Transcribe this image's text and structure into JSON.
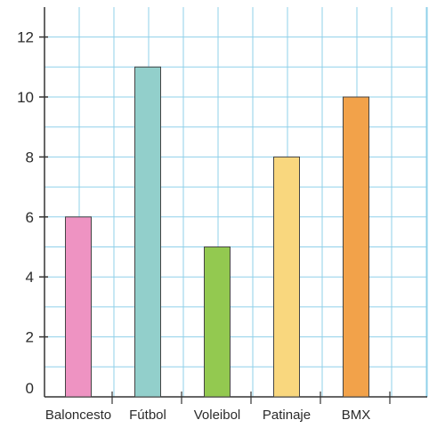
{
  "chart_data": {
    "type": "bar",
    "categories": [
      "Baloncesto",
      "Fútbol",
      "Voleibol",
      "Patinaje",
      "BMX"
    ],
    "values": [
      6,
      11,
      5,
      8,
      10
    ],
    "colors": [
      "#ee93c2",
      "#92cfcb",
      "#93c950",
      "#f9d77e",
      "#f2a24a"
    ],
    "title": "",
    "xlabel": "",
    "ylabel": "",
    "ylim": [
      0,
      12
    ],
    "yticks": [
      0,
      2,
      4,
      6,
      8,
      10,
      12
    ],
    "grid": true,
    "legend": "none"
  }
}
